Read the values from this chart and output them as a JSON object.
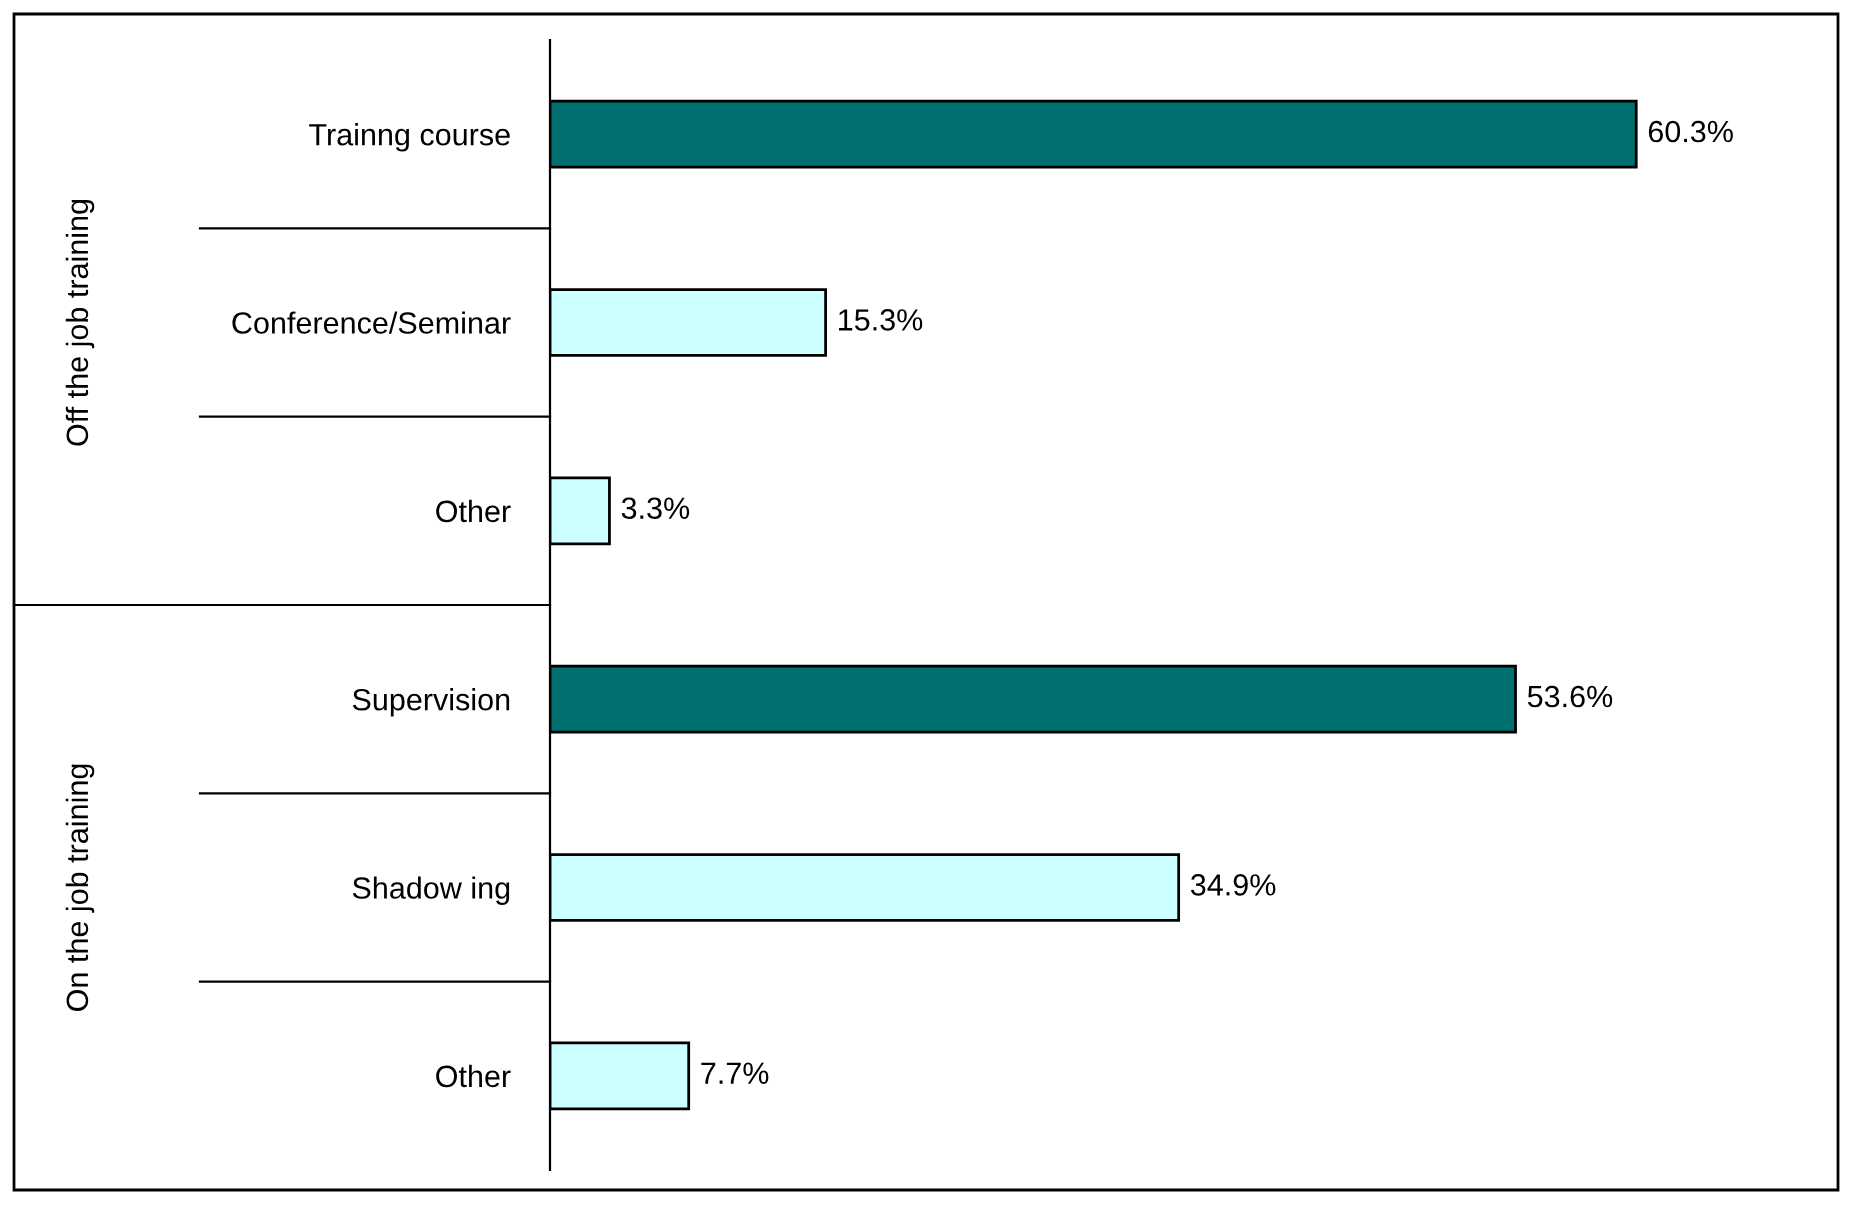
{
  "chart_data": {
    "type": "bar",
    "orientation": "horizontal",
    "categories": [
      "Trainng course",
      "Conference/Seminar",
      "Other",
      "Supervision",
      "Shadow ing",
      "Other"
    ],
    "values": [
      60.3,
      15.3,
      3.3,
      53.6,
      34.9,
      7.7
    ],
    "colors": [
      "#007070",
      "#ccffff",
      "#ccffff",
      "#007070",
      "#ccffff",
      "#ccffff"
    ],
    "value_labels": [
      "60.3%",
      "15.3%",
      "3.3%",
      "53.6%",
      "34.9%",
      "7.7%"
    ],
    "annotations": [
      "Off the job training",
      "On the job training"
    ],
    "grid": false,
    "legend": false
  }
}
